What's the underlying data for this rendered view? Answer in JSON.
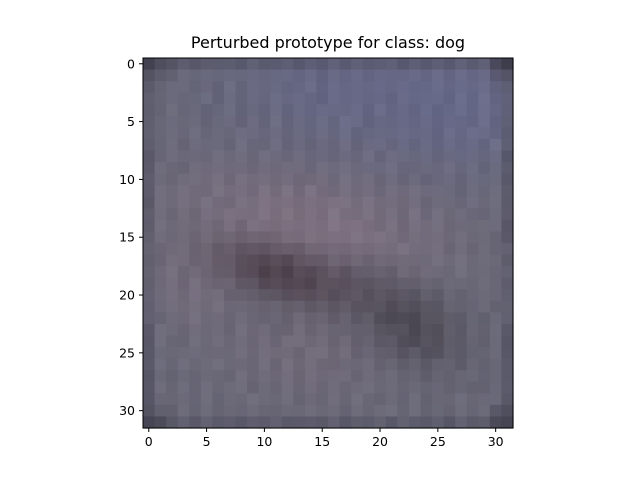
{
  "chart_data": {
    "type": "heatmap",
    "title": "Perturbed prototype for class: dog",
    "xlabel": "",
    "ylabel": "",
    "image_size": [
      32,
      32
    ],
    "xlim": [
      -0.5,
      31.5
    ],
    "ylim": [
      31.5,
      -0.5
    ],
    "x_ticks": [
      0,
      5,
      10,
      15,
      20,
      25,
      30
    ],
    "y_ticks": [
      0,
      5,
      10,
      15,
      20,
      25,
      30
    ],
    "grid": false,
    "legend": "none",
    "colors": {
      "base": "#6c6b7a",
      "top_tint": "#676a8f",
      "top_far_tint": "#6a6e98",
      "pink_band": "#8a7888",
      "dark_blob_left": "#4c3f49",
      "dark_blob_right": "#4a4650",
      "lower_pink": "#7d6f7e",
      "border_dark": "#3c3b48",
      "edge_shade": "#4e4d5e"
    }
  }
}
